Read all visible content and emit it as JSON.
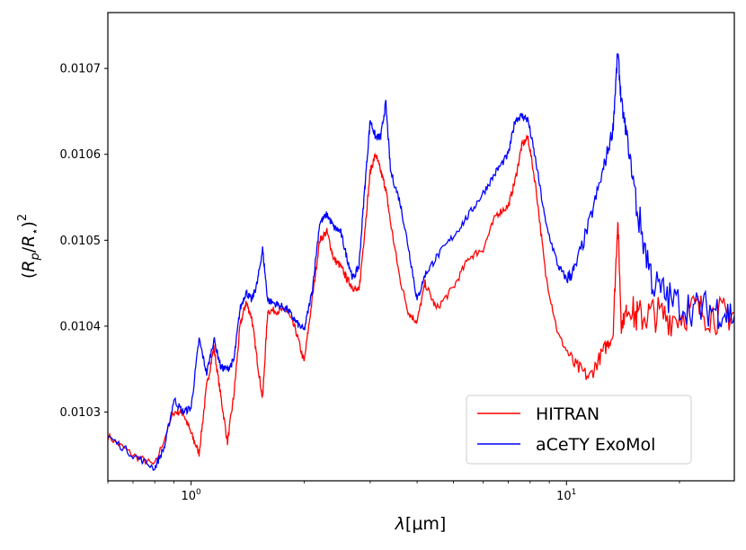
{
  "chart_data": {
    "type": "line",
    "xlabel": "λ[μm]",
    "ylabel": "(R_p/R_⋆)^2",
    "x_scale": "log",
    "xlim": [
      0.6,
      28
    ],
    "ylim": [
      0.01022,
      0.010765
    ],
    "x_ticks": [
      {
        "value": 1,
        "base": "10",
        "exp": "0"
      },
      {
        "value": 10,
        "base": "10",
        "exp": "1"
      }
    ],
    "y_ticks": [
      "0.0103",
      "0.0104",
      "0.0105",
      "0.0106",
      "0.0107"
    ],
    "y_tick_values": [
      0.0103,
      0.0104,
      0.0105,
      0.0106,
      0.0107
    ],
    "grid": false,
    "legend_position": "lower-right",
    "series": [
      {
        "name": "HITRAN",
        "color": "#ff0000",
        "x": [
          0.6,
          0.7,
          0.8,
          0.9,
          0.95,
          1.0,
          1.05,
          1.1,
          1.15,
          1.2,
          1.25,
          1.3,
          1.35,
          1.4,
          1.45,
          1.5,
          1.55,
          1.6,
          1.7,
          1.8,
          1.9,
          2.0,
          2.1,
          2.2,
          2.3,
          2.4,
          2.5,
          2.6,
          2.7,
          2.8,
          2.9,
          3.0,
          3.1,
          3.2,
          3.3,
          3.4,
          3.6,
          3.8,
          4.0,
          4.2,
          4.5,
          5.0,
          5.5,
          6.0,
          6.5,
          7.0,
          7.3,
          7.6,
          7.9,
          8.3,
          8.8,
          9.5,
          10.5,
          11.5,
          12.5,
          13.3,
          13.7,
          14.0,
          14.5,
          15.5,
          17.0,
          19.0,
          22.0,
          25.0,
          28.0
        ],
        "y": [
          0.010272,
          0.01025,
          0.010238,
          0.0103,
          0.0103,
          0.010275,
          0.010252,
          0.01033,
          0.010375,
          0.010318,
          0.010265,
          0.01032,
          0.0104,
          0.010428,
          0.01041,
          0.01036,
          0.010315,
          0.010418,
          0.010418,
          0.010418,
          0.010395,
          0.010358,
          0.01043,
          0.0105,
          0.01051,
          0.010478,
          0.01047,
          0.010455,
          0.010445,
          0.01044,
          0.01051,
          0.01058,
          0.0106,
          0.01058,
          0.01056,
          0.01052,
          0.010455,
          0.010415,
          0.010405,
          0.01045,
          0.01042,
          0.010445,
          0.01048,
          0.01049,
          0.01053,
          0.01054,
          0.01057,
          0.01061,
          0.01062,
          0.01056,
          0.01046,
          0.01039,
          0.010355,
          0.01034,
          0.01037,
          0.01039,
          0.010525,
          0.0104,
          0.01042,
          0.01041,
          0.010415,
          0.01041,
          0.01042,
          0.010412,
          0.010415
        ]
      },
      {
        "name": "aCeTY ExoMol",
        "color": "#0000ff",
        "x": [
          0.6,
          0.7,
          0.8,
          0.85,
          0.9,
          0.95,
          1.0,
          1.05,
          1.1,
          1.15,
          1.2,
          1.25,
          1.3,
          1.35,
          1.4,
          1.45,
          1.5,
          1.55,
          1.6,
          1.7,
          1.8,
          1.9,
          2.0,
          2.1,
          2.2,
          2.3,
          2.4,
          2.5,
          2.6,
          2.7,
          2.8,
          2.9,
          3.0,
          3.1,
          3.2,
          3.3,
          3.4,
          3.6,
          3.8,
          4.0,
          4.2,
          4.5,
          5.0,
          5.5,
          6.0,
          6.5,
          7.0,
          7.3,
          7.6,
          7.9,
          8.3,
          8.8,
          9.5,
          10.0,
          10.5,
          11.5,
          12.5,
          13.3,
          13.7,
          14.0,
          14.5,
          15.5,
          17.0,
          19.0,
          22.0,
          25.0,
          28.0
        ],
        "y": [
          0.010272,
          0.01025,
          0.010235,
          0.01026,
          0.010315,
          0.0103,
          0.010305,
          0.010385,
          0.010345,
          0.010385,
          0.010352,
          0.01035,
          0.01036,
          0.01042,
          0.01044,
          0.01043,
          0.01045,
          0.01049,
          0.01043,
          0.010425,
          0.01042,
          0.010405,
          0.010395,
          0.01044,
          0.01052,
          0.01053,
          0.010515,
          0.01051,
          0.01048,
          0.010455,
          0.01047,
          0.01056,
          0.01064,
          0.01062,
          0.01062,
          0.01066,
          0.01058,
          0.010545,
          0.01049,
          0.01043,
          0.01046,
          0.01048,
          0.010505,
          0.01053,
          0.010555,
          0.01058,
          0.0106,
          0.01064,
          0.010645,
          0.01064,
          0.01059,
          0.01052,
          0.01047,
          0.010455,
          0.010465,
          0.01052,
          0.01058,
          0.01063,
          0.01072,
          0.01066,
          0.01062,
          0.01053,
          0.01045,
          0.01043,
          0.01042,
          0.01042,
          0.010412
        ]
      }
    ]
  }
}
